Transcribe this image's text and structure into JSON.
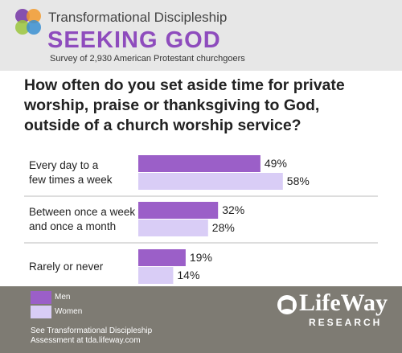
{
  "header": {
    "brand": "Transformational Discipleship",
    "title": "SEEKING GOD",
    "subtitle": "Survey of 2,930 American Protestant churchgoers"
  },
  "chart_data": {
    "type": "bar",
    "orientation": "horizontal",
    "title": "How often do you set aside time for private\nworship, praise or thanksgiving to God,\noutside of a church worship service?",
    "categories": [
      "Every day to a\nfew times a week",
      "Between once a week\nand once a month",
      "Rarely or never"
    ],
    "series": [
      {
        "name": "Men",
        "color": "#9b5fc8",
        "values": [
          49,
          32,
          19
        ],
        "value_labels": [
          "49%",
          "32%",
          "19%"
        ]
      },
      {
        "name": "Women",
        "color": "#d9cdf6",
        "values": [
          58,
          28,
          14
        ],
        "value_labels": [
          "58%",
          "28%",
          "14%"
        ]
      }
    ],
    "xlim": [
      0,
      100
    ],
    "legend": "bottom-left"
  },
  "footer": {
    "note": "See Transformational Discipleship\nAssessment at tda.lifeway.com",
    "logo": "LifeWay",
    "logo_sub": "RESEARCH"
  }
}
